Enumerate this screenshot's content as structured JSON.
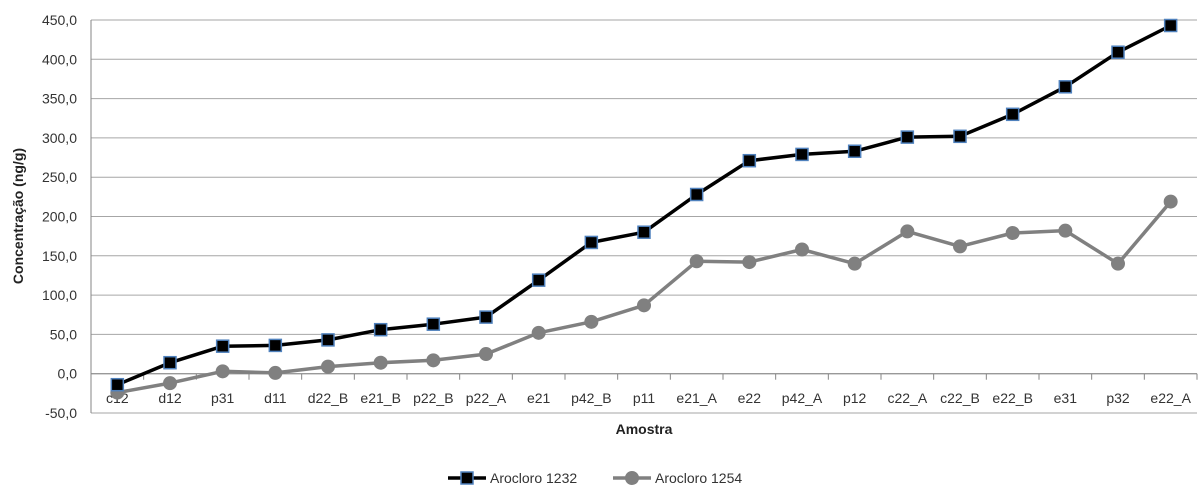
{
  "chart_data": {
    "type": "line",
    "title": "",
    "xlabel": "Amostra",
    "ylabel": "Concentração (ng/g)",
    "ylim": [
      -50,
      450
    ],
    "ytick_step": 50,
    "ytick_format": "decimal-comma-1",
    "grid": "horizontal",
    "legend_position": "bottom-center",
    "categories": [
      "c12",
      "d12",
      "p31",
      "d11",
      "d22_B",
      "e21_B",
      "p22_B",
      "p22_A",
      "e21",
      "p42_B",
      "p11",
      "e21_A",
      "e22",
      "p42_A",
      "p12",
      "c22_A",
      "c22_B",
      "e22_B",
      "e31",
      "p32",
      "e22_A"
    ],
    "series": [
      {
        "name": "Arocloro 1232",
        "color": "#000000",
        "marker": "square",
        "marker_edge": "#4f81bd",
        "values": [
          -14,
          14,
          35,
          36,
          43,
          56,
          63,
          72,
          119,
          167,
          180,
          228,
          271,
          279,
          283,
          301,
          302,
          330,
          365,
          409,
          443
        ]
      },
      {
        "name": "Arocloro 1254",
        "color": "#808080",
        "marker": "circle",
        "marker_edge": "#808080",
        "values": [
          -24,
          -12,
          3,
          1,
          9,
          14,
          17,
          25,
          52,
          66,
          87,
          143,
          142,
          158,
          140,
          181,
          162,
          179,
          182,
          140,
          219
        ]
      }
    ]
  }
}
